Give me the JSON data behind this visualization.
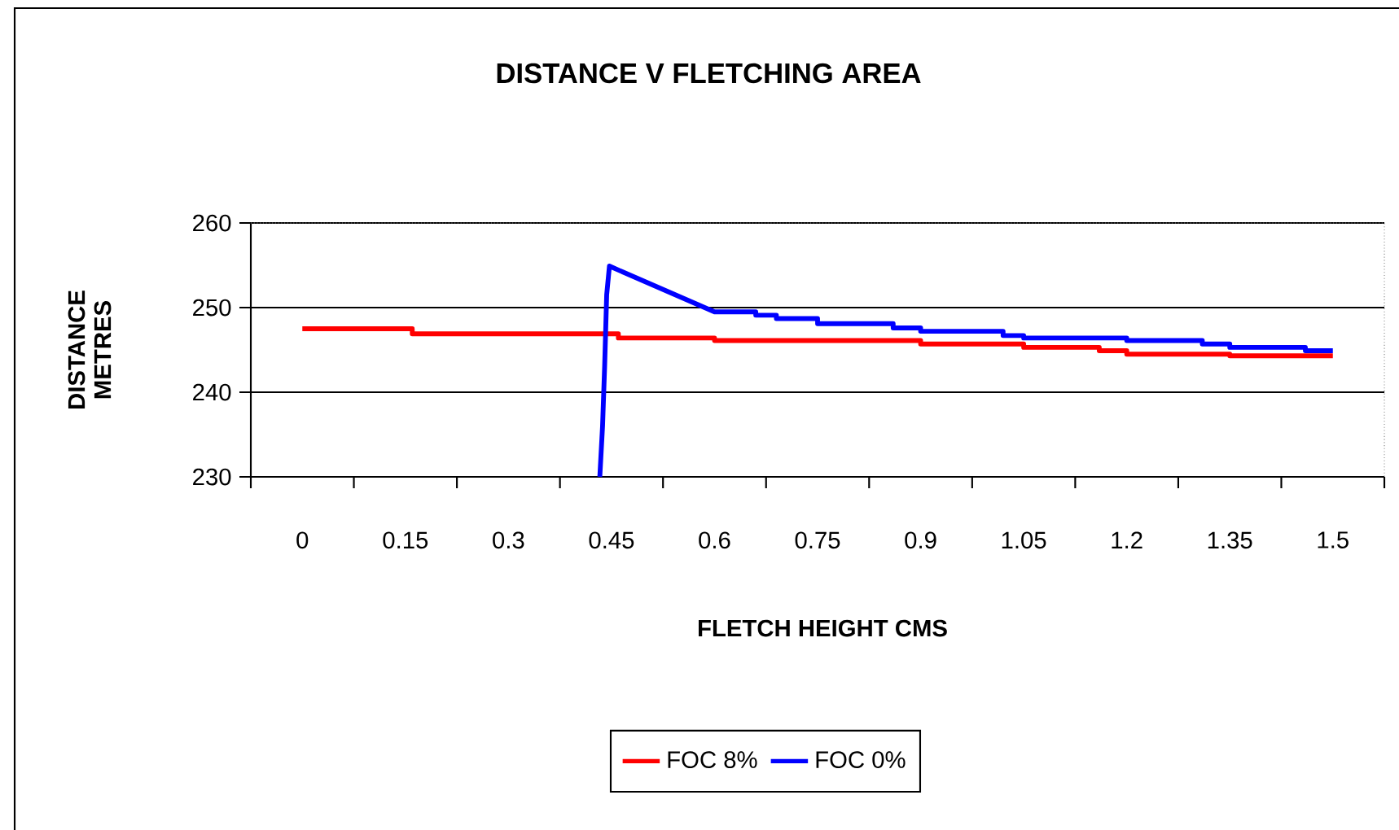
{
  "chart_data": {
    "type": "line",
    "title": "DISTANCE V FLETCHING AREA",
    "xlabel": "FLETCH HEIGHT CMS",
    "ylabel": "DISTANCE METRES",
    "xlim": [
      -0.075,
      1.575
    ],
    "ylim": [
      230,
      260
    ],
    "xticks": [
      {
        "value": -0.075,
        "label": null
      },
      0,
      {
        "value": 0.075,
        "label": null
      },
      0.15,
      {
        "value": 0.225,
        "label": null
      },
      0.3,
      {
        "value": 0.375,
        "label": null
      },
      0.45,
      {
        "value": 0.525,
        "label": null
      },
      0.6,
      {
        "value": 0.675,
        "label": null
      },
      0.75,
      {
        "value": 0.825,
        "label": null
      },
      0.9,
      {
        "value": 0.975,
        "label": null
      },
      1.05,
      {
        "value": 1.125,
        "label": null
      },
      1.2,
      {
        "value": 1.275,
        "label": null
      },
      1.35,
      {
        "value": 1.425,
        "label": null
      },
      1.5,
      {
        "value": 1.575,
        "label": null
      }
    ],
    "yticks": [
      230,
      240,
      250,
      260
    ],
    "grid": "y",
    "legend": "bottom",
    "line_style": "solid",
    "marker": "none",
    "series": [
      {
        "name": "FOC 8%",
        "color": "#ff0000",
        "x": [
          0,
          0.16,
          0.16,
          0.46,
          0.46,
          0.6,
          0.6,
          0.9,
          0.9,
          1.05,
          1.05,
          1.16,
          1.16,
          1.2,
          1.2,
          1.35,
          1.35,
          1.5
        ],
        "values": [
          247.5,
          247.5,
          246.9,
          246.9,
          246.4,
          246.4,
          246.1,
          246.1,
          245.7,
          245.7,
          245.3,
          245.3,
          244.9,
          244.9,
          244.5,
          244.5,
          244.3,
          244.3
        ]
      },
      {
        "name": "FOC 0%",
        "color": "#0000ff",
        "x": [
          0.433,
          0.437,
          0.44,
          0.443,
          0.447,
          0.6,
          0.66,
          0.66,
          0.69,
          0.69,
          0.75,
          0.75,
          0.86,
          0.86,
          0.9,
          0.9,
          1.02,
          1.02,
          1.05,
          1.05,
          1.2,
          1.2,
          1.31,
          1.31,
          1.35,
          1.35,
          1.46,
          1.46,
          1.5
        ],
        "values": [
          230,
          236,
          243,
          251.5,
          254.9,
          249.5,
          249.5,
          249.1,
          249.1,
          248.7,
          248.7,
          248.1,
          248.1,
          247.6,
          247.6,
          247.2,
          247.2,
          246.7,
          246.7,
          246.4,
          246.4,
          246.1,
          246.1,
          245.7,
          245.7,
          245.3,
          245.3,
          244.9,
          244.9
        ]
      }
    ]
  }
}
